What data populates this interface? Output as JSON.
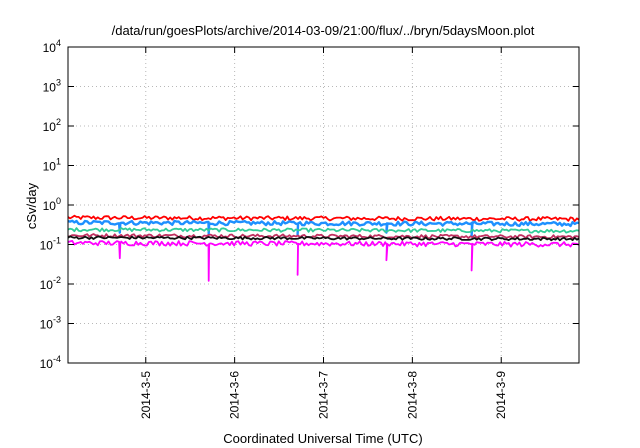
{
  "chart_data": {
    "type": "line",
    "title": "/data/run/goesPlots/archive/2014-03-09/21:00/flux/../bryn/5daysMoon.plot",
    "xlabel": "Coordinated Universal Time (UTC)",
    "ylabel": "cSv/day",
    "yscale": "log",
    "ylim": [
      0.0001,
      10000
    ],
    "xlim": [
      "2014-03-04 03:00",
      "2014-03-09 21:00"
    ],
    "y_ticks": [
      {
        "value": 0.0001,
        "base": "10",
        "exp": "-4"
      },
      {
        "value": 0.001,
        "base": "10",
        "exp": "-3"
      },
      {
        "value": 0.01,
        "base": "10",
        "exp": "-2"
      },
      {
        "value": 0.1,
        "base": "10",
        "exp": "-1"
      },
      {
        "value": 1,
        "base": "10",
        "exp": "0"
      },
      {
        "value": 10,
        "base": "10",
        "exp": "1"
      },
      {
        "value": 100,
        "base": "10",
        "exp": "2"
      },
      {
        "value": 1000,
        "base": "10",
        "exp": "3"
      },
      {
        "value": 10000,
        "base": "10",
        "exp": "4"
      }
    ],
    "x_ticks": [
      {
        "value": "2014-03-05 00:00",
        "label": "2014-3-5"
      },
      {
        "value": "2014-03-06 00:00",
        "label": "2014-3-6"
      },
      {
        "value": "2014-03-07 00:00",
        "label": "2014-3-7"
      },
      {
        "value": "2014-03-08 00:00",
        "label": "2014-3-8"
      },
      {
        "value": "2014-03-09 00:00",
        "label": "2014-3-9"
      }
    ],
    "grid": true,
    "series": [
      {
        "color": "#ff0000",
        "base": 0.48,
        "noise": 0.12,
        "dips": []
      },
      {
        "color": "#1e90ff",
        "base": 0.36,
        "noise": 0.12,
        "dips": [
          {
            "x": "2014-03-04 17:00",
            "y": 0.2
          },
          {
            "x": "2014-03-05 17:00",
            "y": 0.19
          },
          {
            "x": "2014-03-06 17:00",
            "y": 0.18
          },
          {
            "x": "2014-03-07 17:00",
            "y": 0.2
          },
          {
            "x": "2014-03-08 16:00",
            "y": 0.17
          }
        ]
      },
      {
        "color": "#32cd99",
        "base": 0.24,
        "noise": 0.1,
        "dips": []
      },
      {
        "color": "#c03060",
        "base": 0.17,
        "noise": 0.1,
        "dips": []
      },
      {
        "color": "#101010",
        "base": 0.15,
        "noise": 0.08,
        "dips": []
      },
      {
        "color": "#ff00ff",
        "base": 0.11,
        "noise": 0.14,
        "dips": [
          {
            "x": "2014-03-04 17:00",
            "y": 0.045
          },
          {
            "x": "2014-03-05 17:00",
            "y": 0.012
          },
          {
            "x": "2014-03-06 17:00",
            "y": 0.017
          },
          {
            "x": "2014-03-07 17:00",
            "y": 0.04
          },
          {
            "x": "2014-03-08 16:00",
            "y": 0.022
          }
        ]
      }
    ]
  }
}
